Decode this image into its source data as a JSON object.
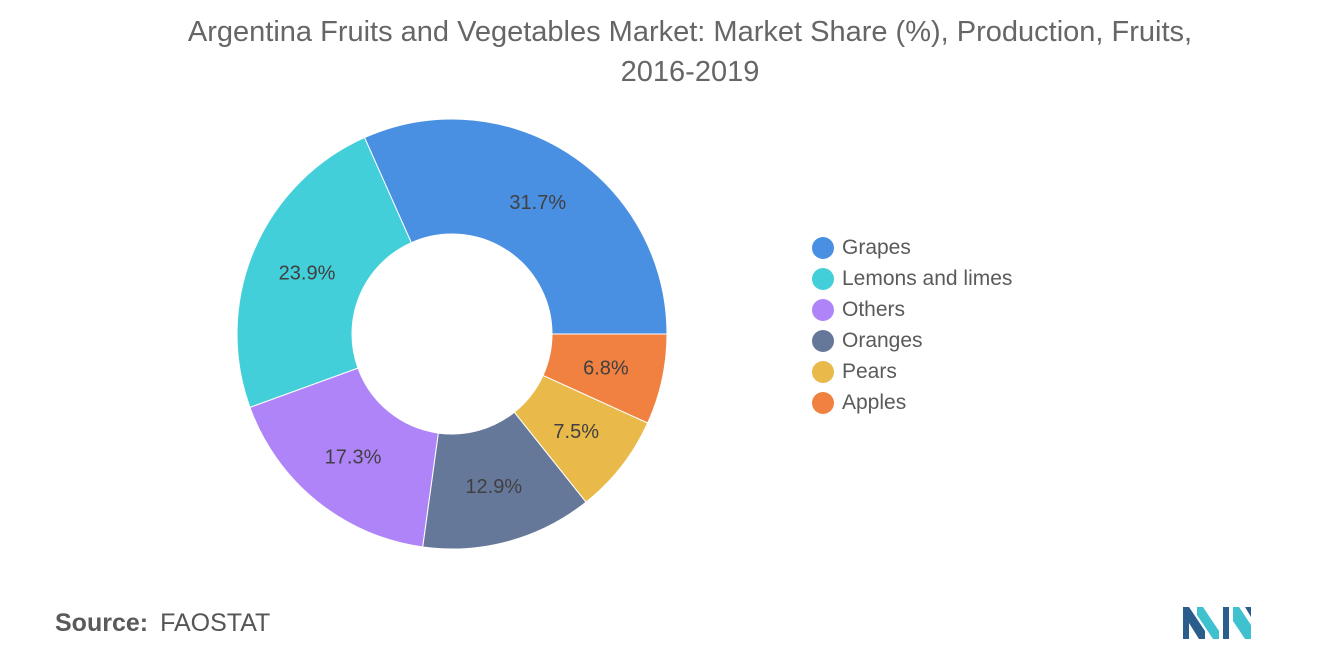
{
  "title_line1": "Argentina Fruits and Vegetables Market: Market Share (%), Production, Fruits,",
  "title_line2": "2016-2019",
  "source": {
    "label": "Source:",
    "value": "FAOSTAT"
  },
  "chart_data": {
    "type": "pie",
    "subtype": "donut",
    "categories": [
      "Grapes",
      "Lemons and limes",
      "Others",
      "Oranges",
      "Pears",
      "Apples"
    ],
    "values": [
      31.7,
      23.9,
      17.3,
      12.9,
      7.5,
      6.8
    ],
    "labels": [
      "31.7%",
      "23.9%",
      "17.3%",
      "12.9%",
      "7.5%",
      "6.8%"
    ],
    "colors": [
      "#4a90e2",
      "#42cfd9",
      "#b084f9",
      "#66789a",
      "#e9b949",
      "#f08140"
    ],
    "legend_position": "right",
    "start_direction": "east, going counter-clockwise"
  }
}
